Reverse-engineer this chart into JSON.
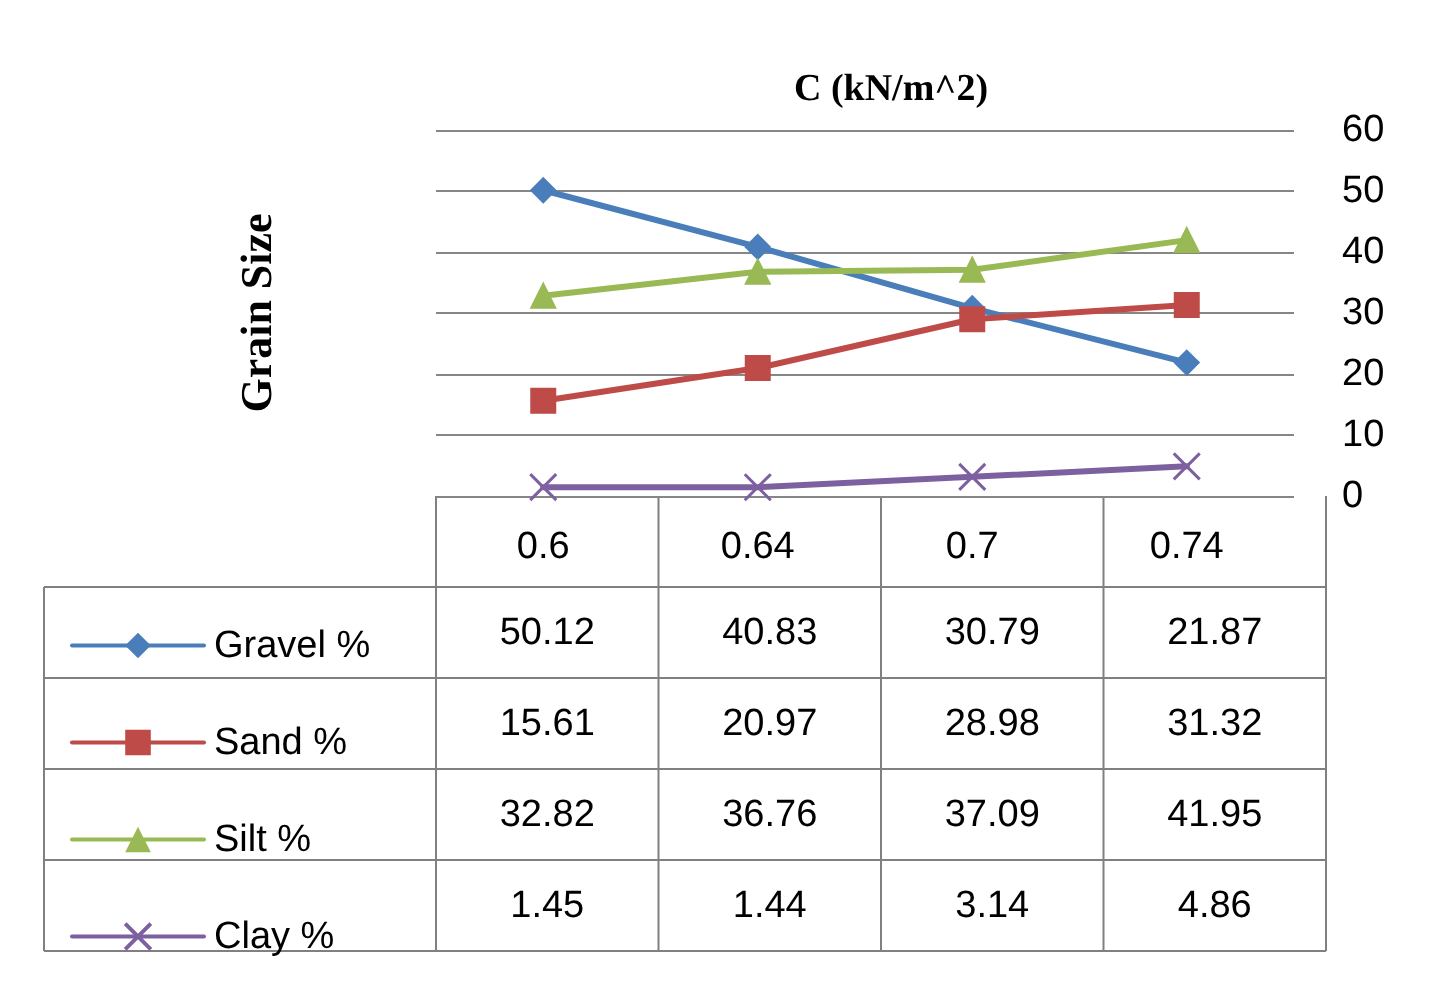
{
  "chart_data": {
    "type": "line",
    "title": "C (kN/m^2)",
    "ylabel": "Grain Size",
    "categories": [
      "0.6",
      "0.64",
      "0.7",
      "0.74"
    ],
    "series": [
      {
        "name": "Gravel %",
        "color": "#4a7ebb",
        "marker": "diamond",
        "values": [
          50.12,
          40.83,
          30.79,
          21.87
        ]
      },
      {
        "name": "Sand %",
        "color": "#be4b48",
        "marker": "square",
        "values": [
          15.61,
          20.97,
          28.98,
          31.32
        ]
      },
      {
        "name": "Silt %",
        "color": "#98b954",
        "marker": "triangle",
        "values": [
          32.82,
          36.76,
          37.09,
          41.95
        ]
      },
      {
        "name": "Clay %",
        "color": "#7d60a0",
        "marker": "cross",
        "values": [
          1.45,
          1.44,
          3.14,
          4.86
        ]
      }
    ],
    "ylim": [
      0,
      60
    ],
    "yticks": [
      0,
      10,
      20,
      30,
      40,
      50,
      60
    ],
    "grid": "y",
    "legend": "bottom left",
    "data_labels": true
  }
}
